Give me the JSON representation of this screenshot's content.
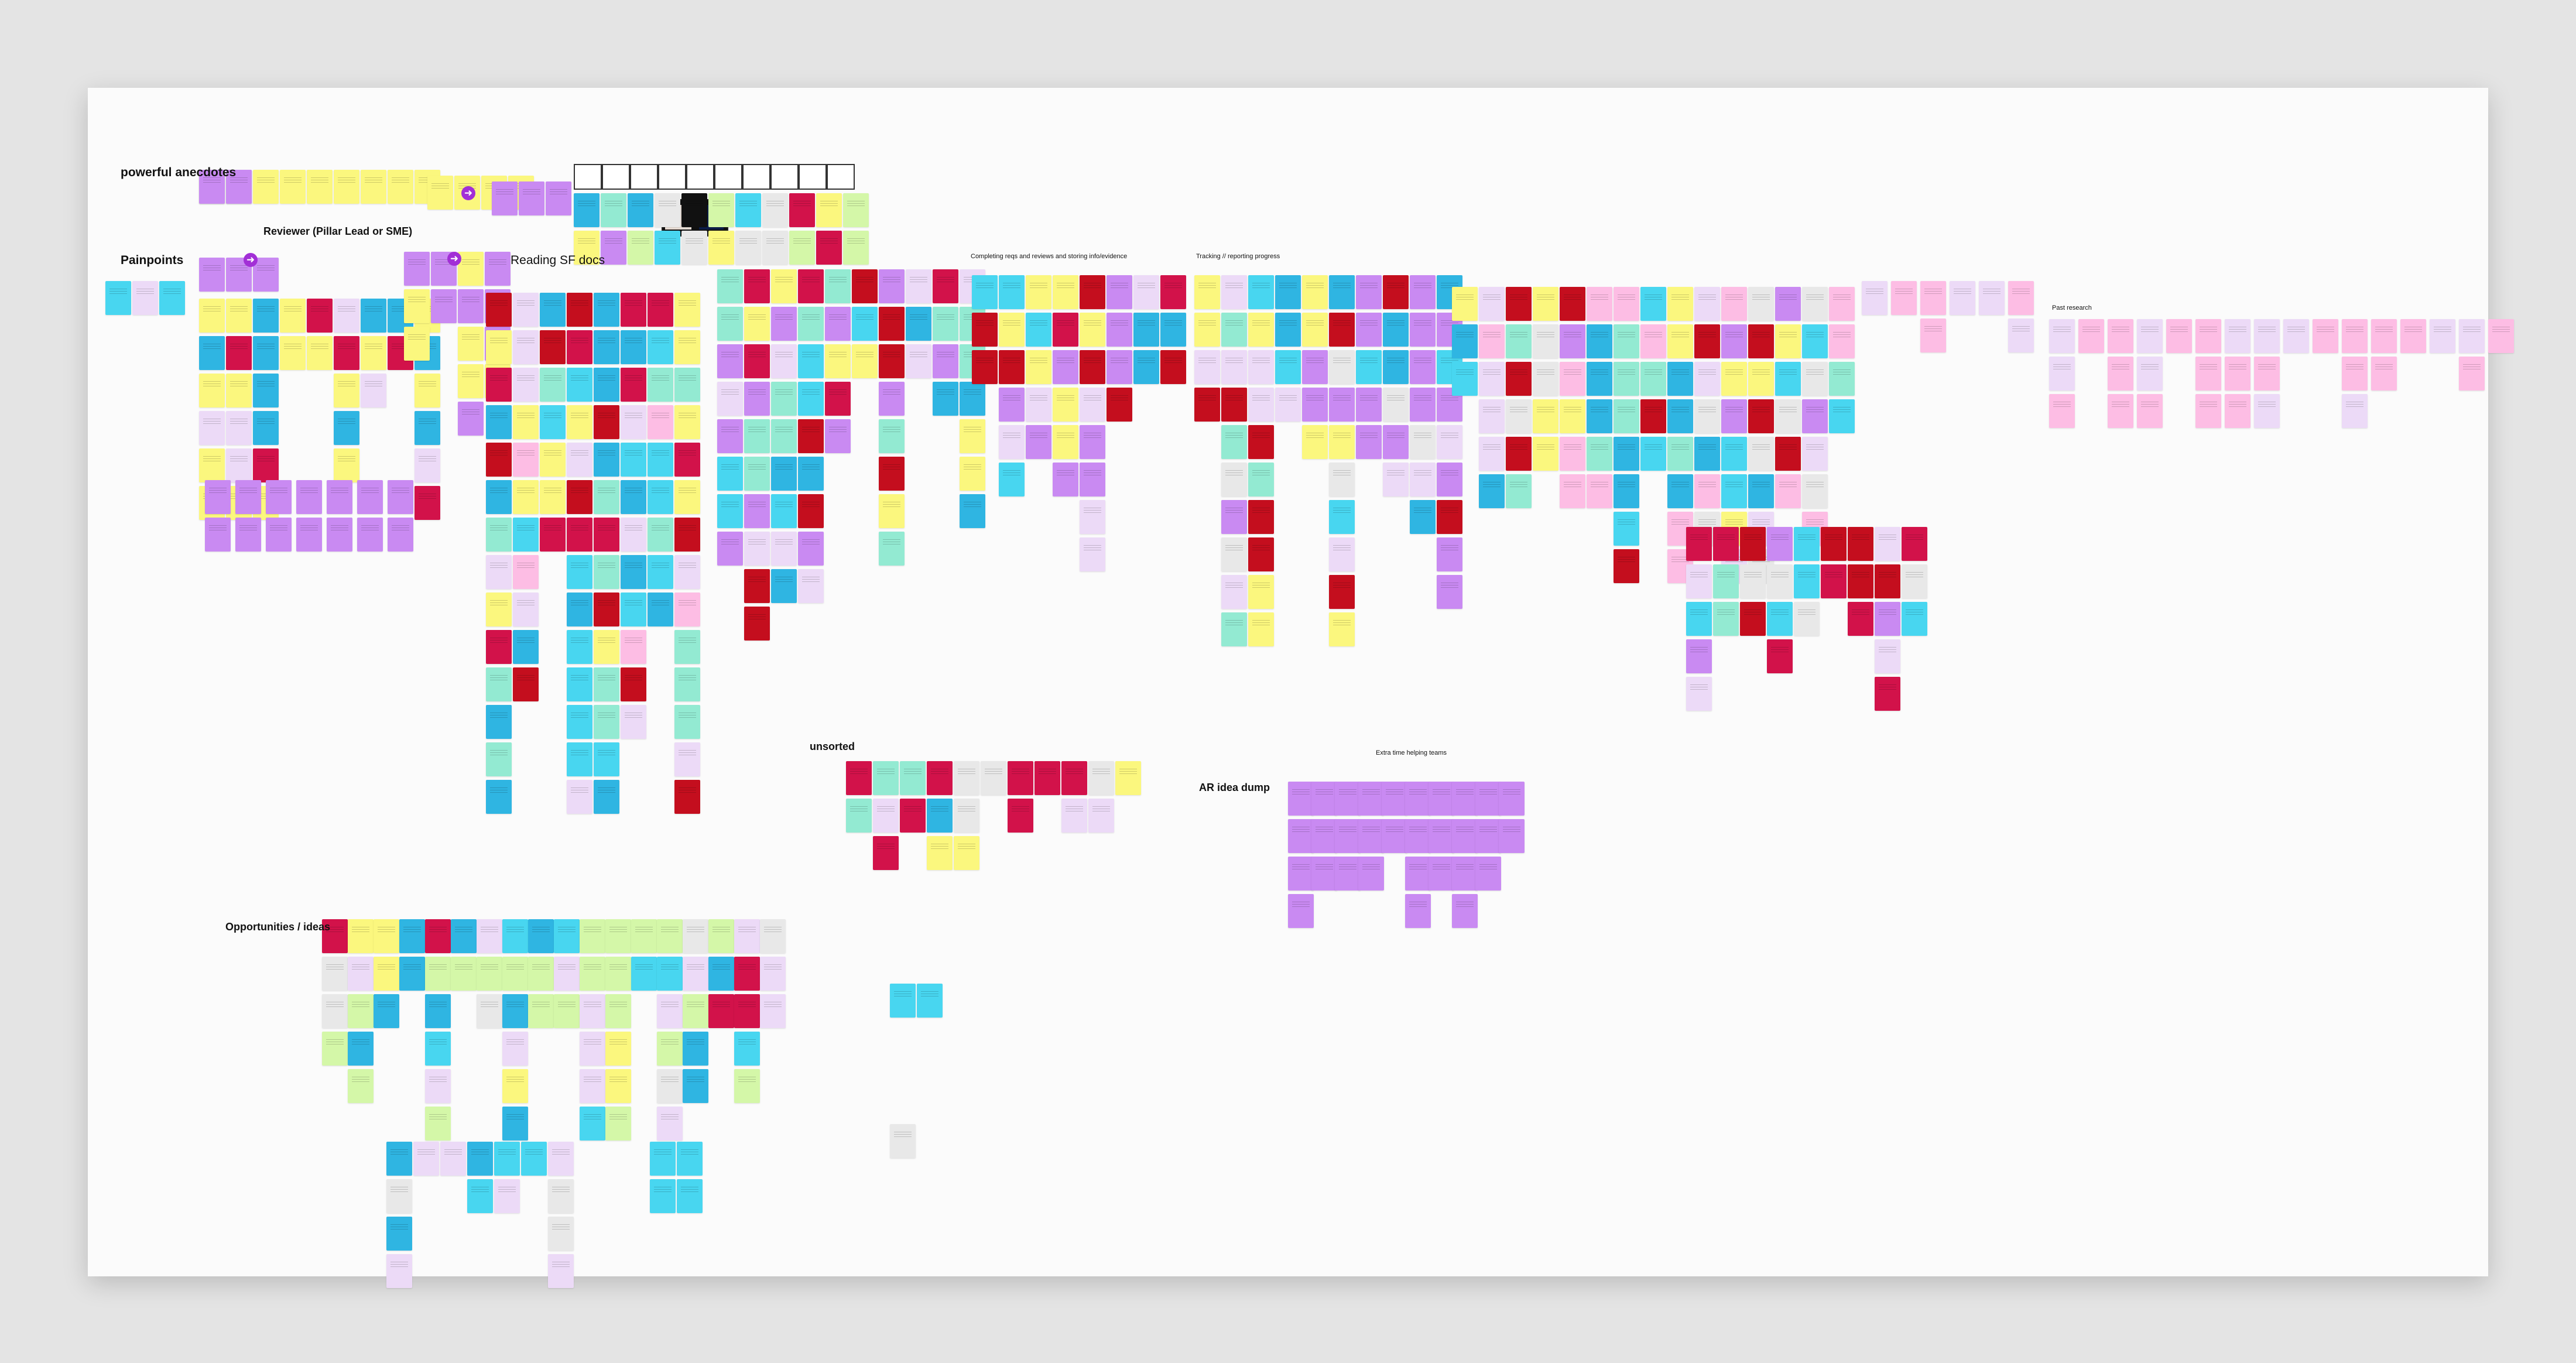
{
  "board": {
    "headings": {
      "powerful_anecdotes": "powerful anecdotes",
      "reviewer": "Reviewer (Pillar Lead or SME)",
      "painpoints": "Painpoints",
      "reading_sf_docs": "Reading SF docs",
      "completing_reqs": "Completing reqs and reviews and storing info/evidence",
      "tracking": "Tracking // reporting progress",
      "past_research": "Past research",
      "unsorted": "unsorted",
      "extra_time": "Extra time helping teams",
      "ar_idea_dump": "AR idea dump",
      "opportunities": "Opportunities / ideas"
    },
    "arrow_icon": "arrow-right-circle-icon"
  },
  "colors": {
    "purple": "#c98af2",
    "lilac": "#ecdaf7",
    "yellow": "#fbf77e",
    "gold": "#fdd835",
    "cyan": "#48d6f0",
    "blue": "#2fb5e2",
    "red": "#c40e1e",
    "crimson": "#d2124a",
    "teal": "#93ead2",
    "pink": "#fdbde4",
    "green": "#d4f7a8",
    "gray": "#e8e8e8",
    "black": "#111111",
    "accent": "#a22fd6"
  }
}
